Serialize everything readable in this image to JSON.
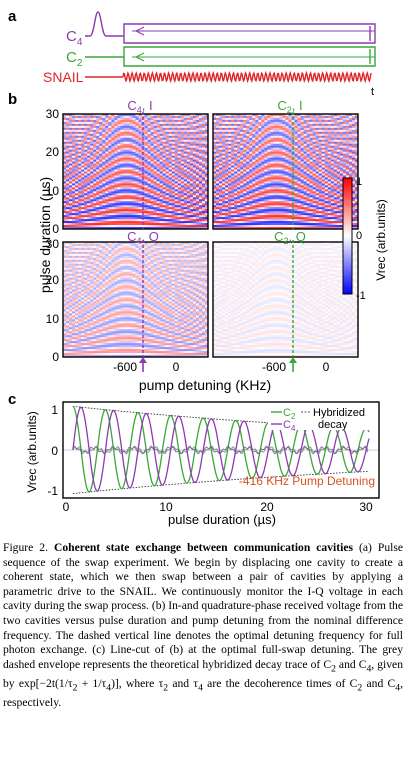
{
  "panel_a": {
    "letter": "a",
    "labels": {
      "c4": "C",
      "c4_sub": "4",
      "c2": "C",
      "c2_sub": "2",
      "snail": "SNAIL",
      "t": "t"
    },
    "colors": {
      "c4": "#8c3bb0",
      "c2": "#3aa63a",
      "snail": "#e0262a"
    }
  },
  "panel_b": {
    "letter": "b",
    "ylabel": "pulse duration (µs)",
    "xlabel": "pump detuning (KHz)",
    "yticks_top": [
      "0",
      "10",
      "20",
      "30"
    ],
    "yticks_bottom": [
      "0",
      "10",
      "20",
      "30"
    ],
    "xticks": [
      "-600",
      "0"
    ],
    "titles": {
      "c4i": "C",
      "c4i_sub": "4",
      "c4i_q": ", I",
      "c2i": "C",
      "c2i_sub": "2",
      "c2i_q": ", I",
      "c4q": "C",
      "c4q_sub": "4",
      "c4q_q": ", Q",
      "c2q": "C",
      "c2q_sub": "2",
      "c2q_q": ", Q"
    },
    "colorbar": {
      "label": "Vrec (arb.units)",
      "ticks": [
        "1",
        "0",
        "-1"
      ],
      "colors": [
        "#0000ff",
        "#ffffff",
        "#ff0000"
      ]
    },
    "optimal_detuning_khz": -416
  },
  "panel_c": {
    "letter": "c",
    "ylabel": "Vrec (arb.units)",
    "xlabel": "pulse duration (µs)",
    "yticks": [
      "1",
      "0",
      "-1"
    ],
    "xticks": [
      "0",
      "10",
      "20",
      "30"
    ],
    "legend": {
      "c2": "C",
      "c2_sub": "2",
      "c4": "C",
      "c4_sub": "4",
      "line1": "Hybridized",
      "line2": "decay"
    },
    "annotation": "-416 KHz Pump Detuning",
    "annotation_color": "#d9531e"
  },
  "chart_data": {
    "type": "line",
    "xlabel": "pulse duration (µs)",
    "ylabel": "Vrec (arb.units)",
    "xlim": [
      -1,
      31
    ],
    "ylim": [
      -1.1,
      1.1
    ],
    "period_us": 3.3,
    "envelope_decay_us": 42,
    "series": [
      {
        "name": "C2",
        "color": "#3aa63a",
        "phase": "cos"
      },
      {
        "name": "C4",
        "color": "#8c3bb0",
        "phase": "sin"
      }
    ]
  },
  "caption": {
    "fig_label": "Figure 2.",
    "title": "Coherent state exchange between communication cavities",
    "body_1": " (a) Pulse sequence of the swap experiment. We begin by displacing one cavity to create a coherent state, which we then swap between a pair of cavities by applying a parametric drive to the SNAIL. We continuously monitor the I-Q voltage in each cavity during the swap process. (b) In-and quadrature-phase received voltage from the two cavities versus pulse duration and pump detuning from the nominal difference frequency. The dashed vertical line denotes the optimal detuning frequency for full photon exchange. (c) Line-cut of (b) at the optimal full-swap detuning. The grey dashed envelope represents the theoretical hybridized decay trace of C",
    "sub_2a": "2",
    "body_2": " and C",
    "sub_4a": "4",
    "body_3": ", given by exp[−2t(1/τ",
    "sub_2b": "2",
    "body_4": " + 1/τ",
    "sub_4b": "4",
    "body_5": ")], where τ",
    "sub_2c": "2",
    "body_6": " and τ",
    "sub_4c": "4",
    "body_7": " are the decoherence times of C",
    "sub_2d": "2",
    "body_8": " and C",
    "sub_4d": "4",
    "body_9": ", respectively."
  }
}
